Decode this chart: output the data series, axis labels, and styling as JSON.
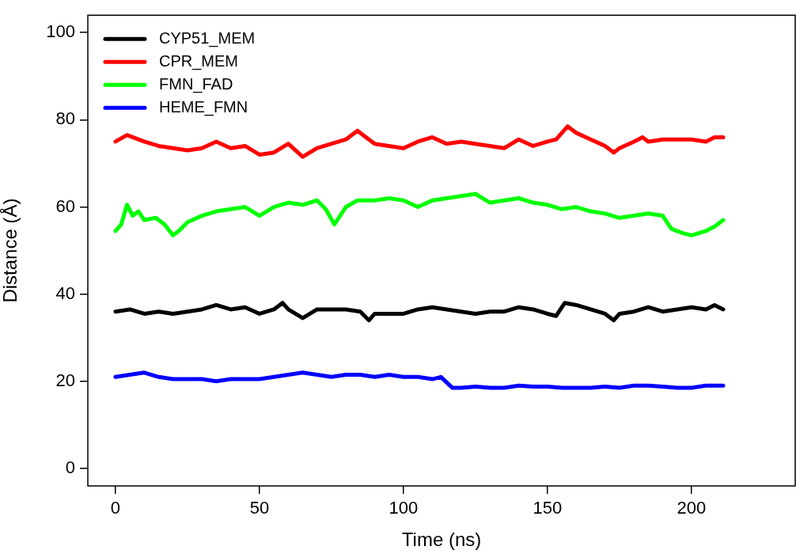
{
  "chart_data": {
    "type": "line",
    "xlabel": "Time (ns)",
    "ylabel": "Distance (Å)",
    "xlim": [
      -9.6,
      236
    ],
    "ylim": [
      -4,
      104
    ],
    "xticks": [
      0,
      50,
      100,
      150,
      200
    ],
    "yticks": [
      0,
      20,
      40,
      60,
      80,
      100
    ],
    "grid": false,
    "legend": "top left",
    "marker": "none",
    "line_style": "solid",
    "series": [
      {
        "name": "CYP51_MEM",
        "color": "#000000",
        "x": [
          0,
          5,
          10,
          15,
          20,
          25,
          30,
          35,
          40,
          45,
          50,
          55,
          58,
          60,
          65,
          70,
          75,
          80,
          85,
          88,
          90,
          95,
          100,
          105,
          110,
          115,
          120,
          125,
          130,
          135,
          140,
          145,
          150,
          153,
          156,
          160,
          165,
          170,
          173,
          175,
          180,
          185,
          190,
          195,
          200,
          205,
          208,
          211
        ],
        "values": [
          36,
          36.5,
          35.5,
          36,
          35.5,
          36,
          36.5,
          37.5,
          36.5,
          37,
          35.5,
          36.5,
          38,
          36.5,
          34.5,
          36.5,
          36.5,
          36.5,
          36,
          34,
          35.5,
          35.5,
          35.5,
          36.5,
          37,
          36.5,
          36,
          35.5,
          36,
          36,
          37,
          36.5,
          35.5,
          35,
          38,
          37.5,
          36.5,
          35.5,
          34,
          35.5,
          36,
          37,
          36,
          36.5,
          37,
          36.5,
          37.5,
          36.5
        ]
      },
      {
        "name": "CPR_MEM",
        "color": "#ff0000",
        "x": [
          0,
          4,
          10,
          15,
          20,
          25,
          30,
          35,
          40,
          45,
          50,
          55,
          60,
          65,
          70,
          75,
          80,
          84,
          90,
          95,
          100,
          105,
          110,
          115,
          120,
          125,
          130,
          135,
          140,
          145,
          150,
          153,
          157,
          160,
          165,
          170,
          173,
          175,
          180,
          183,
          185,
          190,
          195,
          200,
          205,
          208,
          211
        ],
        "values": [
          75,
          76.5,
          75,
          74,
          73.5,
          73,
          73.5,
          75,
          73.5,
          74,
          72,
          72.5,
          74.5,
          71.5,
          73.5,
          74.5,
          75.5,
          77.5,
          74.5,
          74,
          73.5,
          75,
          76,
          74.5,
          75,
          74.5,
          74,
          73.5,
          75.5,
          74,
          75,
          75.5,
          78.5,
          77,
          75.5,
          74,
          72.5,
          73.5,
          75,
          76,
          75,
          75.5,
          75.5,
          75.5,
          75,
          76,
          76
        ]
      },
      {
        "name": "FMN_FAD",
        "color": "#00ff00",
        "x": [
          0,
          2,
          4,
          6,
          8,
          10,
          14,
          17,
          20,
          22,
          25,
          30,
          35,
          40,
          45,
          50,
          55,
          60,
          65,
          70,
          73,
          76,
          80,
          84,
          90,
          95,
          100,
          105,
          110,
          115,
          120,
          125,
          130,
          135,
          140,
          145,
          150,
          155,
          160,
          165,
          170,
          175,
          180,
          185,
          190,
          193,
          197,
          200,
          205,
          208,
          211
        ],
        "values": [
          54.5,
          56,
          60.5,
          58,
          59,
          57,
          57.5,
          56,
          53.5,
          54.5,
          56.5,
          58,
          59,
          59.5,
          60,
          58,
          60,
          61,
          60.5,
          61.5,
          59.5,
          56,
          60,
          61.5,
          61.5,
          62,
          61.5,
          60,
          61.5,
          62,
          62.5,
          63,
          61,
          61.5,
          62,
          61,
          60.5,
          59.5,
          60,
          59,
          58.5,
          57.5,
          58,
          58.5,
          58,
          55,
          54,
          53.5,
          54.5,
          55.5,
          57
        ]
      },
      {
        "name": "HEME_FMN",
        "color": "#0000ff",
        "x": [
          0,
          5,
          10,
          15,
          20,
          25,
          30,
          35,
          40,
          45,
          50,
          55,
          60,
          65,
          70,
          75,
          80,
          85,
          90,
          95,
          100,
          105,
          110,
          113,
          117,
          120,
          125,
          130,
          135,
          140,
          145,
          150,
          155,
          160,
          165,
          170,
          175,
          180,
          185,
          190,
          195,
          200,
          205,
          211
        ],
        "values": [
          21,
          21.5,
          22,
          21,
          20.5,
          20.5,
          20.5,
          20,
          20.5,
          20.5,
          20.5,
          21,
          21.5,
          22,
          21.5,
          21,
          21.5,
          21.5,
          21,
          21.5,
          21,
          21,
          20.5,
          21,
          18.5,
          18.5,
          18.8,
          18.5,
          18.5,
          19,
          18.8,
          18.8,
          18.5,
          18.5,
          18.5,
          18.8,
          18.5,
          19,
          19,
          18.8,
          18.5,
          18.5,
          19,
          19
        ]
      }
    ]
  }
}
